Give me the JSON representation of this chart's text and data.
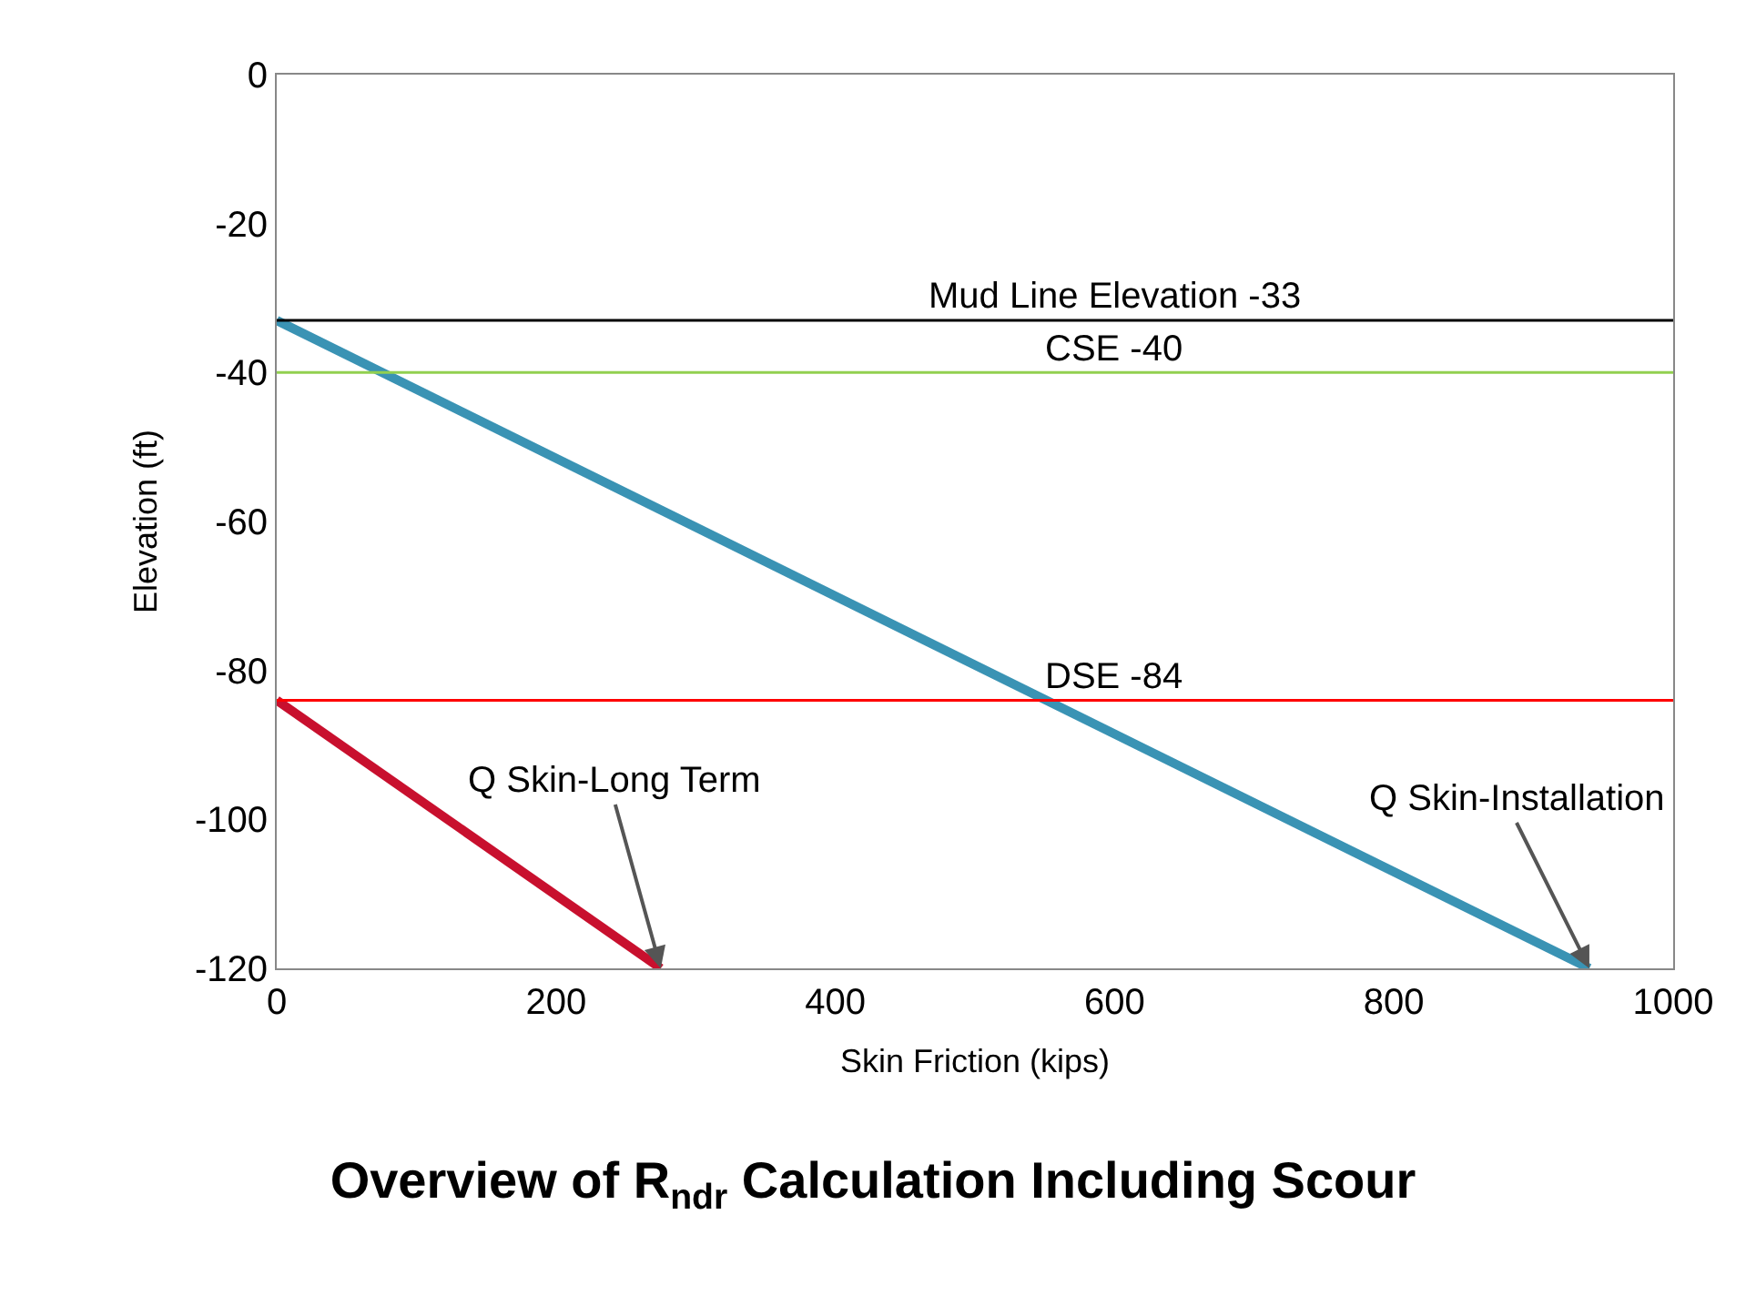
{
  "chart_data": {
    "type": "line",
    "title": "Overview of R$_{ndr}$ Calculation Including Scour",
    "xlabel": "Skin Friction (kips)",
    "ylabel": "Elevation (ft)",
    "series": [
      {
        "name": "Q Skin-Long Term",
        "color": "#c8102e",
        "x": [
          0,
          275
        ],
        "values": [
          -84,
          -120
        ]
      },
      {
        "name": "Q Skin-Installation",
        "color": "#3a93b4",
        "x": [
          0,
          940
        ],
        "values": [
          -33,
          -120
        ]
      }
    ],
    "ref_lines": [
      {
        "axis": "y",
        "value": -33,
        "label": "Mud Line Elevation -33",
        "color": "#000000"
      },
      {
        "axis": "y",
        "value": -40,
        "label": "CSE -40",
        "color": "#92d050"
      },
      {
        "axis": "y",
        "value": -84,
        "label": "DSE -84",
        "color": "#ff0000"
      }
    ],
    "xlim": [
      0,
      1000
    ],
    "xticks": [
      0,
      200,
      400,
      600,
      800,
      1000
    ],
    "ylim": [
      -120,
      0
    ],
    "yticks": [
      -120,
      -100,
      -80,
      -60,
      -40,
      -20,
      0
    ],
    "legend": false,
    "marker": "none",
    "line_style": "solid"
  }
}
